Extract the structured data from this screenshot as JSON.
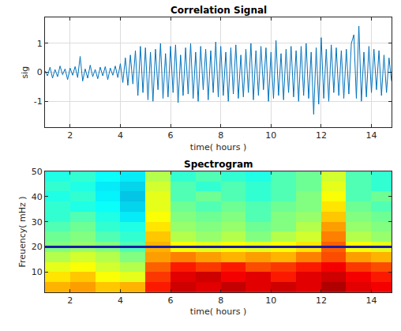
{
  "chart_data": [
    {
      "type": "line",
      "title": "Correlation Signal",
      "x_label": "time( hours )",
      "y_label": "sig",
      "color": "#0072bd",
      "grid": true,
      "xlim": [
        1,
        14.8
      ],
      "xticks": [
        2,
        4,
        6,
        8,
        10,
        12,
        14
      ],
      "ylim": [
        -1.9,
        1.9
      ],
      "yticks": [
        -1,
        0,
        1
      ],
      "x": [
        1.0,
        1.1,
        1.2,
        1.3,
        1.4,
        1.5,
        1.6,
        1.7,
        1.8,
        1.9,
        2.0,
        2.1,
        2.2,
        2.3,
        2.4,
        2.5,
        2.6,
        2.7,
        2.8,
        2.9,
        3.0,
        3.1,
        3.2,
        3.3,
        3.4,
        3.5,
        3.6,
        3.7,
        3.8,
        3.9,
        4.0,
        4.1,
        4.2,
        4.3,
        4.4,
        4.5,
        4.6,
        4.7,
        4.8,
        4.9,
        5.0,
        5.1,
        5.2,
        5.3,
        5.4,
        5.5,
        5.6,
        5.7,
        5.8,
        5.9,
        6.0,
        6.1,
        6.2,
        6.3,
        6.4,
        6.5,
        6.6,
        6.7,
        6.8,
        6.9,
        7.0,
        7.1,
        7.2,
        7.3,
        7.4,
        7.5,
        7.6,
        7.7,
        7.8,
        7.9,
        8.0,
        8.1,
        8.2,
        8.3,
        8.4,
        8.5,
        8.6,
        8.7,
        8.8,
        8.9,
        9.0,
        9.1,
        9.2,
        9.3,
        9.4,
        9.5,
        9.6,
        9.7,
        9.8,
        9.9,
        10.0,
        10.1,
        10.2,
        10.3,
        10.4,
        10.5,
        10.6,
        10.7,
        10.8,
        10.9,
        11.0,
        11.1,
        11.2,
        11.3,
        11.4,
        11.5,
        11.6,
        11.7,
        11.8,
        11.9,
        12.0,
        12.1,
        12.2,
        12.3,
        12.4,
        12.5,
        12.6,
        12.7,
        12.8,
        12.9,
        13.0,
        13.1,
        13.2,
        13.3,
        13.4,
        13.5,
        13.6,
        13.7,
        13.8,
        13.9,
        14.0,
        14.1,
        14.2,
        14.3,
        14.4,
        14.5,
        14.6,
        14.7,
        14.8
      ],
      "values": [
        0.05,
        -0.12,
        0.18,
        -0.2,
        0.1,
        -0.15,
        0.22,
        -0.08,
        0.12,
        -0.25,
        0.15,
        -0.1,
        0.2,
        -0.18,
        0.55,
        -0.3,
        0.12,
        -0.2,
        0.25,
        -0.15,
        0.1,
        -0.22,
        0.18,
        -0.12,
        0.2,
        -0.25,
        0.15,
        -0.1,
        0.22,
        -0.18,
        0.3,
        -0.35,
        0.5,
        -0.45,
        0.6,
        -0.4,
        0.75,
        -0.8,
        0.9,
        -0.7,
        0.85,
        -0.95,
        0.7,
        -1.0,
        0.8,
        -0.6,
        1.0,
        -0.9,
        0.65,
        -0.85,
        0.9,
        -0.7,
        0.95,
        -1.05,
        0.6,
        -0.8,
        0.85,
        -0.75,
        1.0,
        -0.9,
        0.7,
        -1.0,
        0.9,
        -0.6,
        0.8,
        -0.95,
        0.75,
        -0.7,
        1.05,
        -0.85,
        0.9,
        -0.8,
        0.7,
        -1.0,
        0.85,
        -0.75,
        0.95,
        -0.9,
        0.6,
        -0.85,
        0.8,
        -0.7,
        1.0,
        -0.95,
        0.75,
        -0.8,
        0.9,
        -0.6,
        0.85,
        -1.0,
        0.7,
        -0.9,
        1.1,
        -0.8,
        0.65,
        -0.95,
        0.8,
        -0.7,
        0.9,
        -0.85,
        0.75,
        -1.0,
        0.9,
        -0.8,
        1.0,
        -0.9,
        0.7,
        -1.45,
        0.85,
        -1.1,
        1.2,
        -0.9,
        0.8,
        -1.0,
        0.95,
        -0.7,
        0.85,
        -0.8,
        0.75,
        -0.9,
        0.8,
        -0.75,
        1.0,
        1.3,
        -0.9,
        1.6,
        -1.0,
        0.7,
        -0.85,
        0.9,
        -0.7,
        0.8,
        -0.6,
        0.75,
        -0.8,
        0.6,
        -0.7,
        0.5,
        -0.3
      ]
    },
    {
      "type": "heatmap",
      "title": "Spectrogram",
      "x_label": "time( hours )",
      "y_label": "Freuency( mHz )",
      "grid": false,
      "xlim": [
        1,
        14.8
      ],
      "xticks": [
        2,
        4,
        6,
        8,
        10,
        12,
        14
      ],
      "ylim": [
        2,
        50
      ],
      "yticks": [
        10,
        20,
        30,
        40,
        50
      ],
      "zlim": [
        0,
        1
      ],
      "hline": 20,
      "x": [
        1.5,
        2.5,
        3.5,
        4.5,
        5.5,
        6.5,
        7.5,
        8.5,
        9.5,
        10.5,
        11.5,
        12.5,
        13.5,
        14.5
      ],
      "y": [
        4,
        8,
        12,
        16,
        20,
        24,
        28,
        32,
        36,
        40,
        44,
        48
      ],
      "z": [
        [
          0.7,
          0.72,
          0.68,
          0.7,
          0.85,
          0.92,
          0.9,
          0.93,
          0.9,
          0.92,
          0.9,
          0.95,
          0.9,
          0.88
        ],
        [
          0.65,
          0.68,
          0.62,
          0.6,
          0.82,
          0.9,
          0.92,
          0.88,
          0.9,
          0.85,
          0.9,
          0.92,
          0.88,
          0.85
        ],
        [
          0.6,
          0.62,
          0.58,
          0.55,
          0.78,
          0.85,
          0.82,
          0.85,
          0.8,
          0.82,
          0.85,
          0.88,
          0.82,
          0.8
        ],
        [
          0.55,
          0.58,
          0.55,
          0.5,
          0.72,
          0.75,
          0.72,
          0.7,
          0.72,
          0.7,
          0.75,
          0.8,
          0.72,
          0.7
        ],
        [
          0.5,
          0.52,
          0.5,
          0.45,
          0.7,
          0.62,
          0.6,
          0.62,
          0.6,
          0.62,
          0.65,
          0.78,
          0.62,
          0.6
        ],
        [
          0.48,
          0.5,
          0.45,
          0.42,
          0.68,
          0.55,
          0.52,
          0.55,
          0.5,
          0.55,
          0.58,
          0.75,
          0.55,
          0.52
        ],
        [
          0.45,
          0.48,
          0.42,
          0.4,
          0.65,
          0.52,
          0.5,
          0.52,
          0.48,
          0.5,
          0.55,
          0.72,
          0.52,
          0.5
        ],
        [
          0.42,
          0.45,
          0.4,
          0.35,
          0.62,
          0.5,
          0.48,
          0.5,
          0.45,
          0.5,
          0.52,
          0.68,
          0.5,
          0.48
        ],
        [
          0.42,
          0.4,
          0.38,
          0.32,
          0.6,
          0.48,
          0.45,
          0.48,
          0.45,
          0.48,
          0.5,
          0.65,
          0.48,
          0.45
        ],
        [
          0.4,
          0.42,
          0.36,
          0.3,
          0.6,
          0.45,
          0.48,
          0.45,
          0.42,
          0.45,
          0.5,
          0.62,
          0.45,
          0.48
        ],
        [
          0.42,
          0.4,
          0.35,
          0.32,
          0.58,
          0.45,
          0.42,
          0.45,
          0.42,
          0.45,
          0.48,
          0.6,
          0.45,
          0.42
        ],
        [
          0.4,
          0.42,
          0.38,
          0.35,
          0.55,
          0.42,
          0.45,
          0.42,
          0.4,
          0.45,
          0.48,
          0.58,
          0.45,
          0.42
        ]
      ]
    }
  ]
}
